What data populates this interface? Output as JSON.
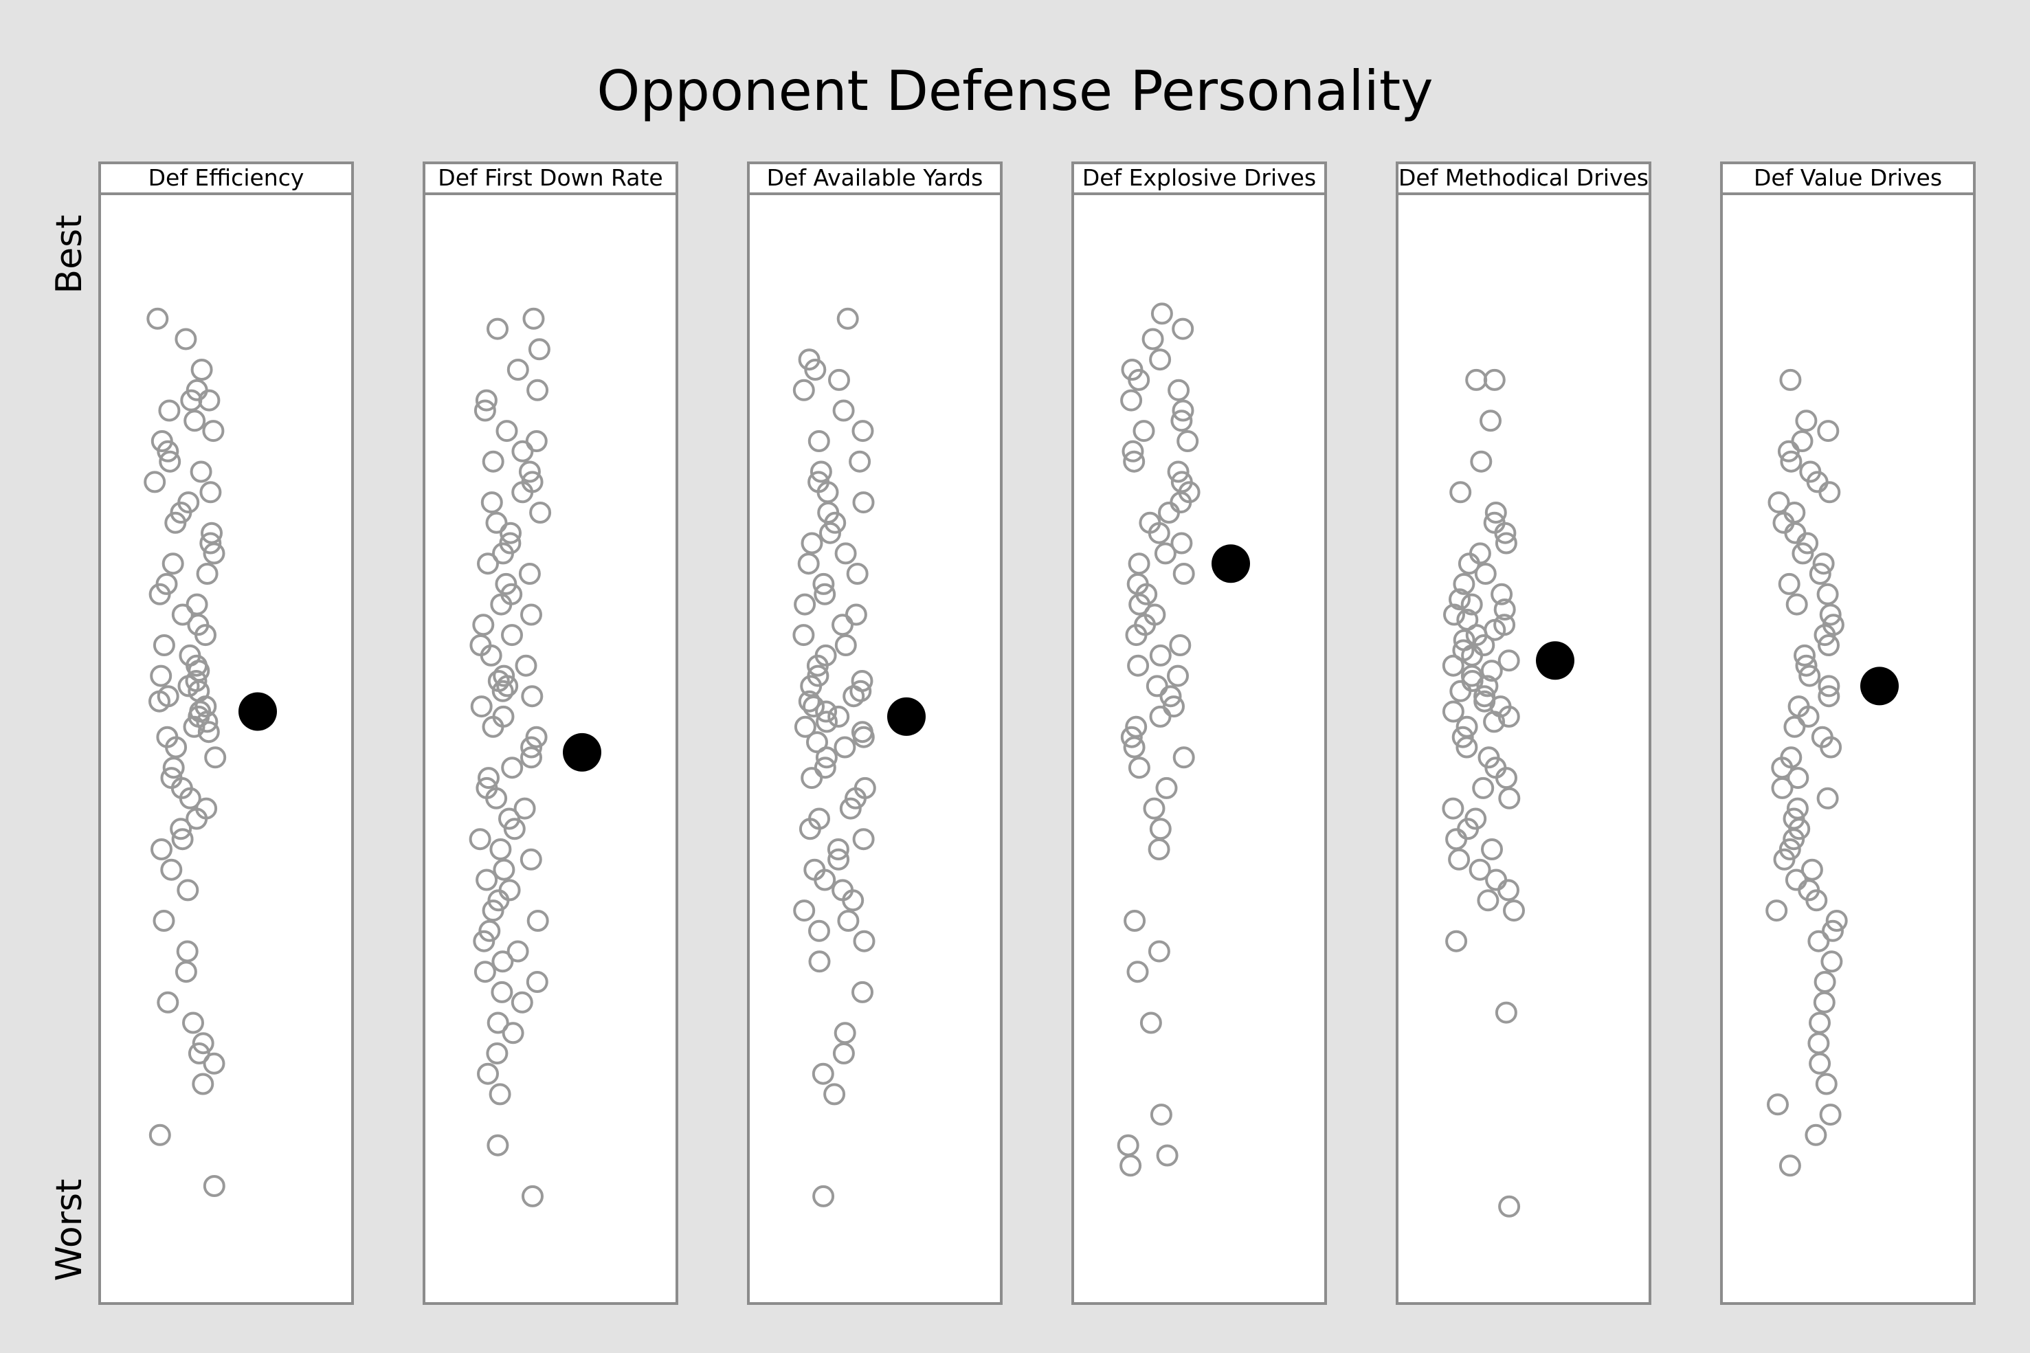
{
  "chart_data": {
    "type": "scatter",
    "title": "Opponent Defense Personality",
    "y_axis": {
      "top_label": "Best",
      "bottom_label": "Worst",
      "ylim": [
        0,
        1
      ]
    },
    "grid": false,
    "legend": "none",
    "colors": {
      "background": "#e3e3e3",
      "panel": "#ffffff",
      "frame": "#8c8c8c",
      "team_points": "#999999",
      "highlight": "#000000"
    },
    "panels": [
      {
        "label": "Def Efficiency",
        "highlight": 0.535,
        "values": [
          0.92,
          0.9,
          0.87,
          0.85,
          0.84,
          0.84,
          0.83,
          0.82,
          0.81,
          0.8,
          0.79,
          0.78,
          0.77,
          0.76,
          0.75,
          0.74,
          0.73,
          0.72,
          0.71,
          0.7,
          0.69,
          0.68,
          0.67,
          0.66,
          0.65,
          0.64,
          0.63,
          0.62,
          0.61,
          0.6,
          0.59,
          0.58,
          0.575,
          0.57,
          0.565,
          0.56,
          0.555,
          0.55,
          0.545,
          0.54,
          0.535,
          0.53,
          0.525,
          0.52,
          0.515,
          0.51,
          0.5,
          0.49,
          0.48,
          0.47,
          0.46,
          0.45,
          0.44,
          0.43,
          0.42,
          0.41,
          0.4,
          0.38,
          0.36,
          0.33,
          0.3,
          0.28,
          0.25,
          0.23,
          0.21,
          0.2,
          0.19,
          0.17,
          0.12,
          0.07
        ]
      },
      {
        "label": "Def First Down Rate",
        "highlight": 0.495,
        "values": [
          0.92,
          0.91,
          0.89,
          0.87,
          0.85,
          0.84,
          0.83,
          0.81,
          0.8,
          0.79,
          0.78,
          0.77,
          0.76,
          0.75,
          0.74,
          0.73,
          0.72,
          0.71,
          0.7,
          0.69,
          0.68,
          0.67,
          0.66,
          0.65,
          0.64,
          0.63,
          0.62,
          0.61,
          0.6,
          0.59,
          0.58,
          0.57,
          0.565,
          0.56,
          0.555,
          0.55,
          0.54,
          0.53,
          0.52,
          0.51,
          0.5,
          0.49,
          0.48,
          0.47,
          0.46,
          0.45,
          0.44,
          0.43,
          0.42,
          0.41,
          0.4,
          0.39,
          0.38,
          0.37,
          0.36,
          0.35,
          0.34,
          0.33,
          0.32,
          0.31,
          0.3,
          0.29,
          0.28,
          0.27,
          0.26,
          0.25,
          0.23,
          0.22,
          0.2,
          0.18,
          0.16,
          0.11,
          0.06
        ]
      },
      {
        "label": "Def Available Yards",
        "highlight": 0.53,
        "values": [
          0.92,
          0.88,
          0.87,
          0.86,
          0.85,
          0.83,
          0.81,
          0.8,
          0.78,
          0.77,
          0.76,
          0.75,
          0.74,
          0.73,
          0.72,
          0.71,
          0.7,
          0.69,
          0.68,
          0.67,
          0.66,
          0.65,
          0.64,
          0.63,
          0.62,
          0.61,
          0.6,
          0.59,
          0.58,
          0.57,
          0.565,
          0.56,
          0.555,
          0.55,
          0.545,
          0.54,
          0.535,
          0.53,
          0.525,
          0.52,
          0.515,
          0.51,
          0.505,
          0.5,
          0.49,
          0.48,
          0.47,
          0.46,
          0.45,
          0.44,
          0.43,
          0.42,
          0.41,
          0.4,
          0.39,
          0.38,
          0.37,
          0.36,
          0.35,
          0.34,
          0.33,
          0.32,
          0.31,
          0.29,
          0.26,
          0.22,
          0.2,
          0.18,
          0.16,
          0.06
        ]
      },
      {
        "label": "Def Explosive Drives",
        "highlight": 0.68,
        "values": [
          0.925,
          0.91,
          0.9,
          0.88,
          0.87,
          0.86,
          0.85,
          0.84,
          0.83,
          0.82,
          0.81,
          0.8,
          0.79,
          0.78,
          0.77,
          0.76,
          0.75,
          0.74,
          0.73,
          0.72,
          0.71,
          0.7,
          0.69,
          0.68,
          0.67,
          0.66,
          0.65,
          0.64,
          0.63,
          0.62,
          0.61,
          0.6,
          0.59,
          0.58,
          0.57,
          0.56,
          0.55,
          0.54,
          0.53,
          0.52,
          0.51,
          0.5,
          0.49,
          0.48,
          0.46,
          0.44,
          0.42,
          0.4,
          0.33,
          0.3,
          0.28,
          0.23,
          0.14,
          0.11,
          0.1,
          0.09
        ]
      },
      {
        "label": "Def Methodical Drives",
        "highlight": 0.585,
        "values": [
          0.86,
          0.86,
          0.82,
          0.78,
          0.75,
          0.73,
          0.72,
          0.71,
          0.7,
          0.69,
          0.68,
          0.67,
          0.66,
          0.65,
          0.645,
          0.64,
          0.635,
          0.63,
          0.625,
          0.62,
          0.615,
          0.61,
          0.605,
          0.6,
          0.595,
          0.59,
          0.585,
          0.58,
          0.575,
          0.57,
          0.565,
          0.56,
          0.555,
          0.55,
          0.545,
          0.54,
          0.535,
          0.53,
          0.525,
          0.52,
          0.51,
          0.5,
          0.49,
          0.48,
          0.47,
          0.46,
          0.45,
          0.44,
          0.43,
          0.42,
          0.41,
          0.4,
          0.39,
          0.38,
          0.37,
          0.36,
          0.35,
          0.34,
          0.31,
          0.24,
          0.05
        ]
      },
      {
        "label": "Def Value Drives",
        "highlight": 0.56,
        "values": [
          0.86,
          0.82,
          0.81,
          0.8,
          0.79,
          0.78,
          0.77,
          0.76,
          0.75,
          0.74,
          0.73,
          0.72,
          0.71,
          0.7,
          0.69,
          0.68,
          0.67,
          0.66,
          0.65,
          0.64,
          0.63,
          0.62,
          0.61,
          0.6,
          0.59,
          0.58,
          0.57,
          0.56,
          0.55,
          0.54,
          0.53,
          0.52,
          0.51,
          0.5,
          0.49,
          0.48,
          0.47,
          0.46,
          0.45,
          0.44,
          0.43,
          0.42,
          0.41,
          0.4,
          0.39,
          0.38,
          0.37,
          0.36,
          0.35,
          0.34,
          0.33,
          0.32,
          0.31,
          0.29,
          0.27,
          0.25,
          0.23,
          0.21,
          0.19,
          0.17,
          0.15,
          0.14,
          0.12,
          0.09
        ]
      }
    ]
  }
}
